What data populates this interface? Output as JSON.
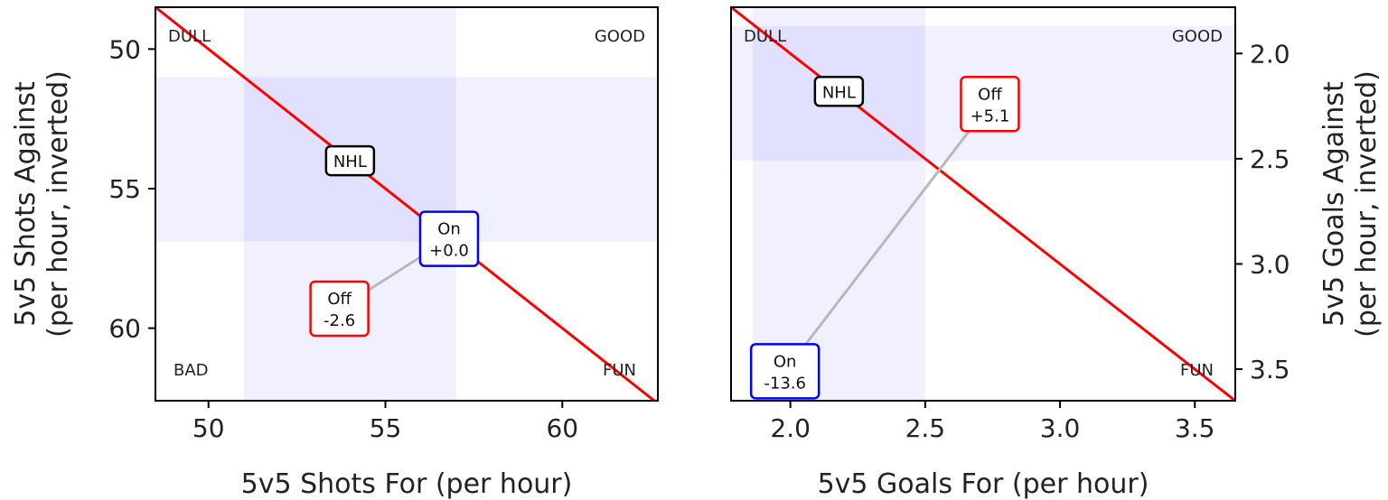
{
  "chart_data": [
    {
      "type": "scatter",
      "xlabel": "5v5 Shots For (per hour)",
      "ylabel": [
        "5v5 Shots Against",
        "(per hour, inverted)"
      ],
      "xlim": [
        48.5,
        62.7
      ],
      "ylim": [
        48.5,
        62.6
      ],
      "y_inverted": true,
      "y_axis_side": "left",
      "xticks": [
        50,
        55,
        60
      ],
      "yticks": [
        50,
        55,
        60
      ],
      "shaded_x_band": [
        51.0,
        57.0
      ],
      "shaded_y_band": [
        51.0,
        56.9
      ],
      "reference_line": {
        "color": "#ff0000",
        "from": [
          48.5,
          48.5
        ],
        "to": [
          62.7,
          62.7
        ]
      },
      "corner_labels": {
        "top_left": "DULL",
        "top_right": "GOOD",
        "bottom_left": "BAD",
        "bottom_right": "FUN"
      },
      "connector": {
        "from": "Off",
        "to": "On"
      },
      "points": [
        {
          "label": "NHL",
          "value": "",
          "x": 54.0,
          "y": 54.0,
          "color": "#000000"
        },
        {
          "label": "On",
          "value": "+0.0",
          "x": 56.8,
          "y": 56.8,
          "color": "#0000ff"
        },
        {
          "label": "Off",
          "value": "-2.6",
          "x": 53.7,
          "y": 59.3,
          "color": "#ff0000"
        }
      ]
    },
    {
      "type": "scatter",
      "xlabel": "5v5 Goals For (per hour)",
      "ylabel": [
        "5v5 Goals Against",
        "(per hour, inverted)"
      ],
      "xlim": [
        1.78,
        3.65
      ],
      "ylim": [
        1.78,
        3.65
      ],
      "y_inverted": true,
      "y_axis_side": "right",
      "xticks": [
        2.0,
        2.5,
        3.0,
        3.5
      ],
      "yticks": [
        2.0,
        2.5,
        3.0,
        3.5
      ],
      "shaded_x_band": [
        1.86,
        2.5
      ],
      "shaded_y_band": [
        1.87,
        2.51
      ],
      "reference_line": {
        "color": "#ff0000",
        "from": [
          1.78,
          1.78
        ],
        "to": [
          3.65,
          3.65
        ]
      },
      "corner_labels": {
        "top_left": "DULL",
        "top_right": "GOOD",
        "bottom_left": "BAD",
        "bottom_right": "FUN"
      },
      "connector": {
        "from": "On",
        "to": "Off"
      },
      "points": [
        {
          "label": "NHL",
          "value": "",
          "x": 2.18,
          "y": 2.18,
          "color": "#000000"
        },
        {
          "label": "Off",
          "value": "+5.1",
          "x": 2.74,
          "y": 2.24,
          "color": "#ff0000"
        },
        {
          "label": "On",
          "value": "-13.6",
          "x": 1.98,
          "y": 3.51,
          "color": "#0000ff"
        }
      ]
    }
  ]
}
